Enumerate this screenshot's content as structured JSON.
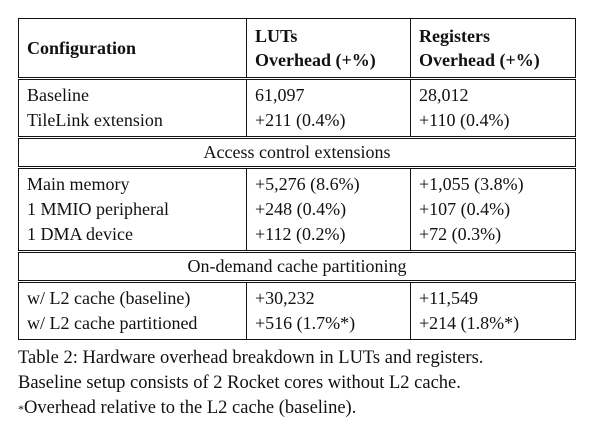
{
  "table": {
    "headers": {
      "configuration": "Configuration",
      "luts_line1": "LUTs",
      "luts_line2": "Overhead (+%)",
      "registers_line1": "Registers",
      "registers_line2": "Overhead (+%)"
    },
    "base_rows": [
      {
        "config": "Baseline",
        "luts": "61,097",
        "registers": "28,012"
      },
      {
        "config": "TileLink extension",
        "luts": "+211 (0.4%)",
        "registers": "+110 (0.4%)"
      }
    ],
    "sections": [
      {
        "title": "Access control extensions",
        "rows": [
          {
            "config": "Main memory",
            "luts": "+5,276 (8.6%)",
            "registers": "+1,055 (3.8%)"
          },
          {
            "config": "1 MMIO peripheral",
            "luts": "+248 (0.4%)",
            "registers": "+107 (0.4%)"
          },
          {
            "config": "1 DMA device",
            "luts": "+112 (0.2%)",
            "registers": "+72 (0.3%)"
          }
        ]
      },
      {
        "title": "On-demand cache partitioning",
        "rows": [
          {
            "config": "w/ L2 cache (baseline)",
            "luts": "+30,232",
            "registers": "+11,549"
          },
          {
            "config": "w/ L2 cache partitioned",
            "luts": "+516 (1.7%*)",
            "registers": "+214 (1.8%*)"
          }
        ]
      }
    ]
  },
  "caption": {
    "line1": "Table 2: Hardware overhead breakdown in LUTs and registers.",
    "line2": "Baseline setup consists of 2 Rocket cores without L2 cache.",
    "line3_marker": "*",
    "line3_text": "Overhead relative to the L2 cache (baseline)."
  }
}
